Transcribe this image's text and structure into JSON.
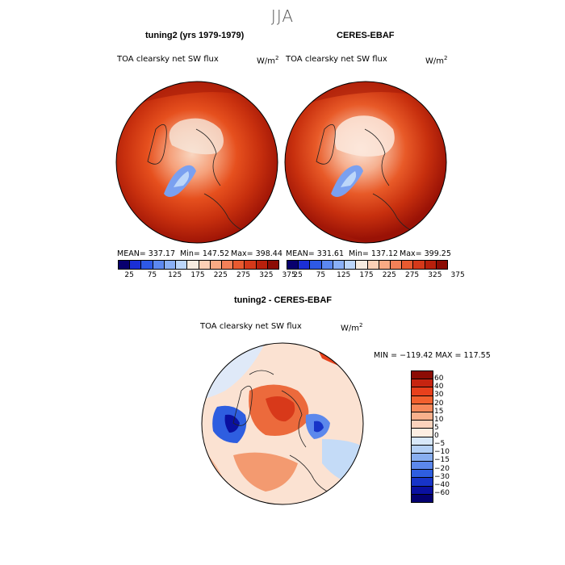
{
  "suptitle": "JJA",
  "panel1": {
    "title": "tuning2 (yrs 1979-1979)",
    "subtitle": "TOA clearsky net SW flux",
    "units": "W/m",
    "units_sup": "2",
    "mean": "MEAN= 337.17",
    "min": "Min= 147.52",
    "max": "Max= 398.44"
  },
  "panel2": {
    "title": "CERES-EBAF",
    "subtitle": "TOA clearsky net SW flux",
    "units": "W/m",
    "units_sup": "2",
    "mean": "MEAN= 331.61",
    "min": "Min= 137.12",
    "max": "Max= 399.25"
  },
  "panel3": {
    "title": "tuning2 - CERES-EBAF",
    "subtitle": "TOA clearsky net SW flux",
    "units": "W/m",
    "units_sup": "2",
    "minmax": "MIN = −119.42  MAX = 117.55"
  },
  "colorbar_top": {
    "colors": [
      "#08006e",
      "#1b2fd6",
      "#2e59e6",
      "#5c88f0",
      "#8ab0f6",
      "#bcd6fa",
      "#f6ebe0",
      "#fbd0b6",
      "#f8aa84",
      "#f38058",
      "#e85a30",
      "#d5391a",
      "#b8200c",
      "#8c0c04"
    ],
    "ticks": [
      "25",
      "75",
      "125",
      "175",
      "225",
      "275",
      "325",
      "375"
    ]
  },
  "colorbar_diff": {
    "colors": [
      "#8c0c04",
      "#c62410",
      "#e8401c",
      "#f2602e",
      "#f7885a",
      "#f9b08c",
      "#fbd3bc",
      "#fdeee2",
      "#d8e8fa",
      "#b4d0f6",
      "#88aef0",
      "#5c88ec",
      "#2e5ee0",
      "#1734c8",
      "#0a10a0",
      "#040070"
    ],
    "labels": [
      "60",
      "40",
      "30",
      "20",
      "15",
      "10",
      "5",
      "0",
      "−5",
      "−10",
      "−15",
      "−20",
      "−30",
      "−40",
      "−60"
    ]
  }
}
